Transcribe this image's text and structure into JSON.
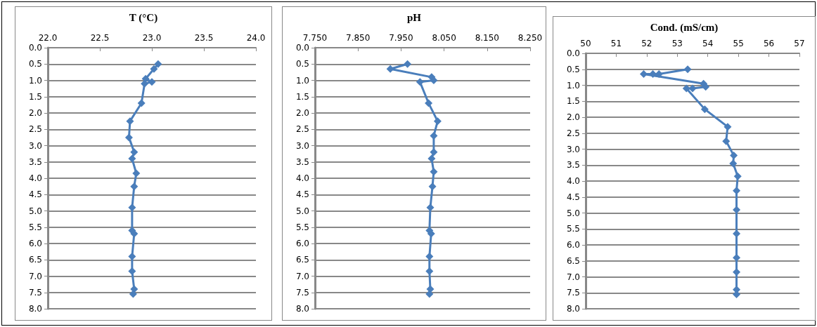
{
  "chart_data": [
    {
      "type": "line",
      "title": "T (°C)",
      "color": "#4a7ebb",
      "marker": "diamond",
      "line_style": "solid",
      "grid": "y",
      "x": [
        23.06,
        23.02,
        22.94,
        23.0,
        22.93,
        22.9,
        22.79,
        22.78,
        22.83,
        22.81,
        22.85,
        22.83,
        22.81,
        22.81,
        22.83,
        22.81,
        22.81,
        22.83,
        22.82
      ],
      "values": [
        0.5,
        0.65,
        0.95,
        1.05,
        1.1,
        1.7,
        2.25,
        2.75,
        3.2,
        3.4,
        3.85,
        4.25,
        4.9,
        5.6,
        5.7,
        6.4,
        6.85,
        7.4,
        7.55
      ],
      "xlim": [
        22,
        24
      ],
      "xticks": [
        {
          "value": 22,
          "label": "22.0"
        },
        {
          "value": 22.5,
          "label": "22.5"
        },
        {
          "value": 23,
          "label": "23.0"
        },
        {
          "value": 23.5,
          "label": "23.5"
        },
        {
          "value": 24,
          "label": "24.0"
        }
      ],
      "ylim": [
        8,
        0
      ],
      "yticks": [
        {
          "value": 0,
          "label": "0.0"
        },
        0.5,
        {
          "value": 1,
          "label": "1.0"
        },
        1.5,
        {
          "value": 2,
          "label": "2.0"
        },
        2.5,
        {
          "value": 3,
          "label": "3.0"
        },
        3.5,
        {
          "value": 4,
          "label": "4.0"
        },
        4.5,
        {
          "value": 5,
          "label": "5.0"
        },
        5.5,
        {
          "value": 6,
          "label": "6.0"
        },
        6.5,
        {
          "value": 7,
          "label": "7.0"
        },
        7.5,
        {
          "value": 8,
          "label": "8.0"
        }
      ]
    },
    {
      "type": "line",
      "title": "pH",
      "color": "#4a7ebb",
      "marker": "diamond",
      "line_style": "solid",
      "grid": "y",
      "x": [
        7.965,
        7.925,
        8.021,
        8.026,
        7.994,
        8.014,
        8.035,
        8.026,
        8.026,
        8.021,
        8.026,
        8.023,
        8.018,
        8.016,
        8.02,
        8.016,
        8.016,
        8.018,
        8.016
      ],
      "values": [
        0.5,
        0.65,
        0.9,
        1.0,
        1.05,
        1.7,
        2.25,
        2.7,
        3.2,
        3.4,
        3.8,
        4.25,
        4.9,
        5.6,
        5.7,
        6.4,
        6.85,
        7.4,
        7.55
      ],
      "xlim": [
        7.75,
        8.25
      ],
      "xticks": [
        {
          "value": 7.75,
          "label": "7.750"
        },
        {
          "value": 7.85,
          "label": "7.850"
        },
        {
          "value": 7.95,
          "label": "7.950"
        },
        {
          "value": 8.05,
          "label": "8.050"
        },
        {
          "value": 8.15,
          "label": "8.150"
        },
        {
          "value": 8.25,
          "label": "8.250"
        }
      ],
      "ylim": [
        8,
        0
      ],
      "yticks": [
        {
          "value": 0,
          "label": "0.0"
        },
        0.5,
        {
          "value": 1,
          "label": "1.0"
        },
        1.5,
        {
          "value": 2,
          "label": "2.0"
        },
        2.5,
        {
          "value": 3,
          "label": "3.0"
        },
        3.5,
        {
          "value": 4,
          "label": "4.0"
        },
        4.5,
        {
          "value": 5,
          "label": "5.0"
        },
        5.5,
        {
          "value": 6,
          "label": "6.0"
        },
        6.5,
        {
          "value": 7,
          "label": "7.0"
        },
        7.5,
        {
          "value": 8,
          "label": "8.0"
        }
      ]
    },
    {
      "type": "line",
      "title": "Cond. (mS/cm)",
      "color": "#4a7ebb",
      "marker": "diamond",
      "line_style": "solid",
      "grid": "y",
      "x": [
        53.34,
        52.4,
        52.2,
        51.9,
        53.86,
        53.93,
        53.5,
        53.3,
        53.9,
        54.65,
        54.6,
        54.85,
        54.83,
        54.98,
        54.94,
        54.94,
        54.94,
        54.94,
        54.94,
        54.94,
        54.94
      ],
      "values": [
        0.5,
        0.65,
        0.65,
        0.65,
        0.95,
        1.05,
        1.1,
        1.1,
        1.75,
        2.3,
        2.75,
        3.2,
        3.45,
        3.85,
        4.3,
        4.9,
        5.65,
        6.4,
        6.85,
        7.4,
        7.55
      ],
      "xlim": [
        50,
        57
      ],
      "xticks": [
        50,
        51,
        52,
        53,
        54,
        55,
        56,
        57
      ],
      "ylim": [
        8,
        0
      ],
      "yticks": [
        {
          "value": 0,
          "label": "0.0"
        },
        0.5,
        {
          "value": 1,
          "label": "1.0"
        },
        1.5,
        {
          "value": 2,
          "label": "2.0"
        },
        2.5,
        {
          "value": 3,
          "label": "3.0"
        },
        3.5,
        {
          "value": 4,
          "label": "4.0"
        },
        4.5,
        {
          "value": 5,
          "label": "5.0"
        },
        5.5,
        {
          "value": 6,
          "label": "6.0"
        },
        6.5,
        {
          "value": 7,
          "label": "7.0"
        },
        7.5,
        {
          "value": 8,
          "label": "8.0"
        }
      ]
    }
  ]
}
